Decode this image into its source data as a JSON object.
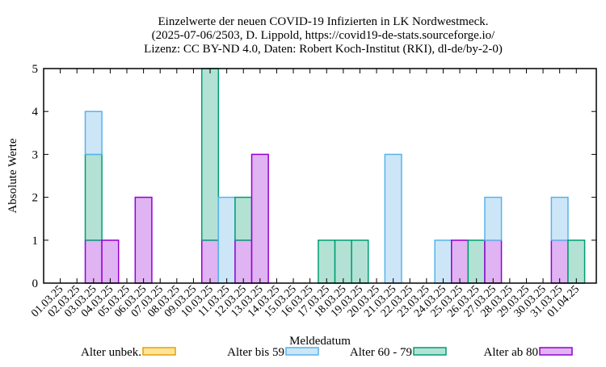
{
  "chart_data": {
    "type": "bar",
    "stacked": true,
    "title": [
      "Einzelwerte der neuen COVID-19 Infizierten in LK Nordwestmeck.",
      "(2025-07-06/2503, D. Lippold, https://covid19-de-stats.sourceforge.io/",
      "Lizenz: CC BY-ND 4.0, Daten: Robert Koch-Institut (RKI), dl-de/by-2-0)"
    ],
    "xlabel": "Meldedatum",
    "ylabel": "Absolute Werte",
    "ylim": [
      0,
      5
    ],
    "yticks": [
      0,
      1,
      2,
      3,
      4,
      5
    ],
    "grid": false,
    "legend": "bottom",
    "categories": [
      "01.03.25",
      "02.03.25",
      "03.03.25",
      "04.03.25",
      "05.03.25",
      "06.03.25",
      "07.03.25",
      "08.03.25",
      "09.03.25",
      "10.03.25",
      "11.03.25",
      "12.03.25",
      "13.03.25",
      "14.03.25",
      "15.03.25",
      "16.03.25",
      "17.03.25",
      "18.03.25",
      "19.03.25",
      "20.03.25",
      "21.03.25",
      "22.03.25",
      "23.03.25",
      "24.03.25",
      "25.03.25",
      "26.03.25",
      "27.03.25",
      "28.03.25",
      "29.03.25",
      "30.03.25",
      "31.03.25",
      "01.04.25"
    ],
    "series": [
      {
        "name": "Alter ab 80",
        "fill": "#e0b3f2",
        "stroke": "#9400d3",
        "values": [
          0,
          0,
          1,
          1,
          0,
          2,
          0,
          0,
          0,
          1,
          0,
          1,
          3,
          0,
          0,
          0,
          0,
          0,
          0,
          0,
          0,
          0,
          0,
          0,
          1,
          0,
          1,
          0,
          0,
          0,
          1,
          0
        ]
      },
      {
        "name": "Alter 60 - 79",
        "fill": "#b3e2d4",
        "stroke": "#009e73",
        "values": [
          0,
          0,
          2,
          0,
          0,
          0,
          0,
          0,
          0,
          4,
          0,
          1,
          0,
          0,
          0,
          0,
          1,
          1,
          1,
          0,
          0,
          0,
          0,
          0,
          0,
          1,
          0,
          0,
          0,
          0,
          0,
          1
        ]
      },
      {
        "name": "Alter bis 59",
        "fill": "#cce6f8",
        "stroke": "#56b4e9",
        "values": [
          0,
          0,
          1,
          0,
          0,
          0,
          0,
          0,
          0,
          0,
          2,
          0,
          0,
          0,
          0,
          0,
          0,
          0,
          0,
          0,
          3,
          0,
          0,
          1,
          0,
          0,
          1,
          0,
          0,
          0,
          1,
          0
        ]
      },
      {
        "name": "Alter unbek.",
        "fill": "#fde49a",
        "stroke": "#e6a000",
        "values": [
          0,
          0,
          0,
          0,
          0,
          0,
          0,
          0,
          0,
          0,
          0,
          0,
          0,
          0,
          0,
          0,
          0,
          0,
          0,
          0,
          0,
          0,
          0,
          0,
          0,
          0,
          0,
          0,
          0,
          0,
          0,
          0
        ]
      }
    ],
    "legend_order": [
      "Alter unbek.",
      "Alter bis 59",
      "Alter 60 - 79",
      "Alter ab 80"
    ]
  }
}
